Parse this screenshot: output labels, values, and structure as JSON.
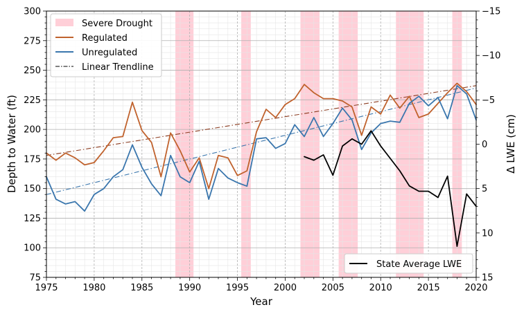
{
  "chart_data": {
    "type": "line",
    "title": "",
    "xlabel": "Year",
    "ylabel_left": "Depth to Water (ft)",
    "ylabel_right": "Δ LWE (cm)",
    "xlim": [
      1975,
      2020
    ],
    "ylim_left": [
      75,
      300
    ],
    "ylim_right": [
      15,
      -15
    ],
    "right_axis_inverted": true,
    "x_ticks": [
      1975,
      1980,
      1985,
      1990,
      1995,
      2000,
      2005,
      2010,
      2015,
      2020
    ],
    "x_tick_labels": [
      "1975",
      "1980",
      "1985",
      "1990",
      "1995",
      "2000",
      "2005",
      "2010",
      "2015",
      "2020"
    ],
    "y_left_ticks": [
      75,
      100,
      125,
      150,
      175,
      200,
      225,
      250,
      275,
      300
    ],
    "y_left_tick_labels": [
      "75",
      "100",
      "125",
      "150",
      "175",
      "200",
      "225",
      "250",
      "275",
      "300"
    ],
    "y_right_ticks": [
      15,
      10,
      5,
      0,
      -5,
      -10,
      -15
    ],
    "y_right_tick_labels": [
      "15",
      "10",
      "5",
      "0",
      "−5",
      "−10",
      "−15"
    ],
    "grid": true,
    "drought_periods": [
      [
        1988.5,
        1990.4
      ],
      [
        1995.4,
        1996.4
      ],
      [
        2001.6,
        2003.6
      ],
      [
        2005.6,
        2007.6
      ],
      [
        2011.6,
        2014.5
      ],
      [
        2017.5,
        2018.5
      ]
    ],
    "series": [
      {
        "name": "Regulated",
        "axis": "left",
        "color": "#c0622d",
        "x": [
          1975,
          1976,
          1977,
          1978,
          1979,
          1980,
          1981,
          1982,
          1983,
          1984,
          1985,
          1986,
          1987,
          1988,
          1989,
          1990,
          1991,
          1992,
          1993,
          1994,
          1995,
          1996,
          1997,
          1998,
          1999,
          2000,
          2001,
          2002,
          2003,
          2004,
          2005,
          2006,
          2007,
          2008,
          2009,
          2010,
          2011,
          2012,
          2013,
          2014,
          2015,
          2016,
          2017,
          2018,
          2019,
          2020
        ],
        "values": [
          180,
          174,
          180,
          176,
          170,
          172,
          182,
          193,
          194,
          223,
          199,
          189,
          160,
          197,
          182,
          164,
          176,
          150,
          178,
          176,
          161,
          165,
          198,
          217,
          210,
          221,
          226,
          238,
          231,
          226,
          226,
          224,
          219,
          195,
          219,
          213,
          229,
          218,
          228,
          210,
          213,
          222,
          231,
          239,
          232,
          221
        ]
      },
      {
        "name": "Unregulated",
        "axis": "left",
        "color": "#3a76ad",
        "x": [
          1975,
          1976,
          1977,
          1978,
          1979,
          1980,
          1981,
          1982,
          1983,
          1984,
          1985,
          1986,
          1987,
          1988,
          1989,
          1990,
          1991,
          1992,
          1993,
          1994,
          1995,
          1996,
          1997,
          1998,
          1999,
          2000,
          2001,
          2002,
          2003,
          2004,
          2005,
          2006,
          2007,
          2008,
          2009,
          2010,
          2011,
          2012,
          2013,
          2014,
          2015,
          2016,
          2017,
          2018,
          2019,
          2020
        ],
        "values": [
          160,
          141,
          137,
          139,
          131,
          145,
          150,
          160,
          166,
          187,
          168,
          154,
          144,
          178,
          160,
          155,
          173,
          141,
          167,
          159,
          155,
          152,
          192,
          193,
          184,
          188,
          204,
          194,
          210,
          194,
          205,
          218,
          208,
          183,
          197,
          205,
          207,
          206,
          222,
          228,
          220,
          227,
          209,
          237,
          230,
          208
        ]
      },
      {
        "name": "State Average LWE",
        "axis": "right",
        "color": "#000000",
        "x": [
          2002,
          2003,
          2004,
          2005,
          2006,
          2007,
          2008,
          2009,
          2010,
          2011,
          2012,
          2013,
          2014,
          2015,
          2016,
          2017,
          2018,
          2019,
          2020
        ],
        "values": [
          1.4,
          1.8,
          1.2,
          3.5,
          0.2,
          -0.6,
          0.0,
          -1.5,
          0.2,
          1.6,
          3.0,
          4.7,
          5.3,
          5.3,
          6.0,
          3.6,
          11.5,
          5.6,
          7.0
        ]
      }
    ],
    "trendlines": [
      {
        "name": "Linear Trendline",
        "color": "#8a3a1e",
        "x": [
          1975,
          2020
        ],
        "values": [
          178,
          237
        ]
      },
      {
        "name": "Linear Trendline",
        "color": "#3a76ad",
        "x": [
          1975,
          2020
        ],
        "values": [
          145,
          235
        ]
      }
    ],
    "legend_upper": {
      "placement": "top-left",
      "entries": [
        {
          "label": "Severe Drought",
          "kind": "patch",
          "color": "#ffcfd8"
        },
        {
          "label": "Regulated",
          "kind": "line",
          "color": "#c0622d"
        },
        {
          "label": "Unregulated",
          "kind": "line",
          "color": "#3a76ad"
        },
        {
          "label": "Linear Trendline",
          "kind": "dashdot",
          "color": "#000000"
        }
      ]
    },
    "legend_lower": {
      "placement": "bottom-right",
      "entries": [
        {
          "label": "State Average LWE",
          "kind": "line",
          "color": "#000000"
        }
      ]
    }
  }
}
